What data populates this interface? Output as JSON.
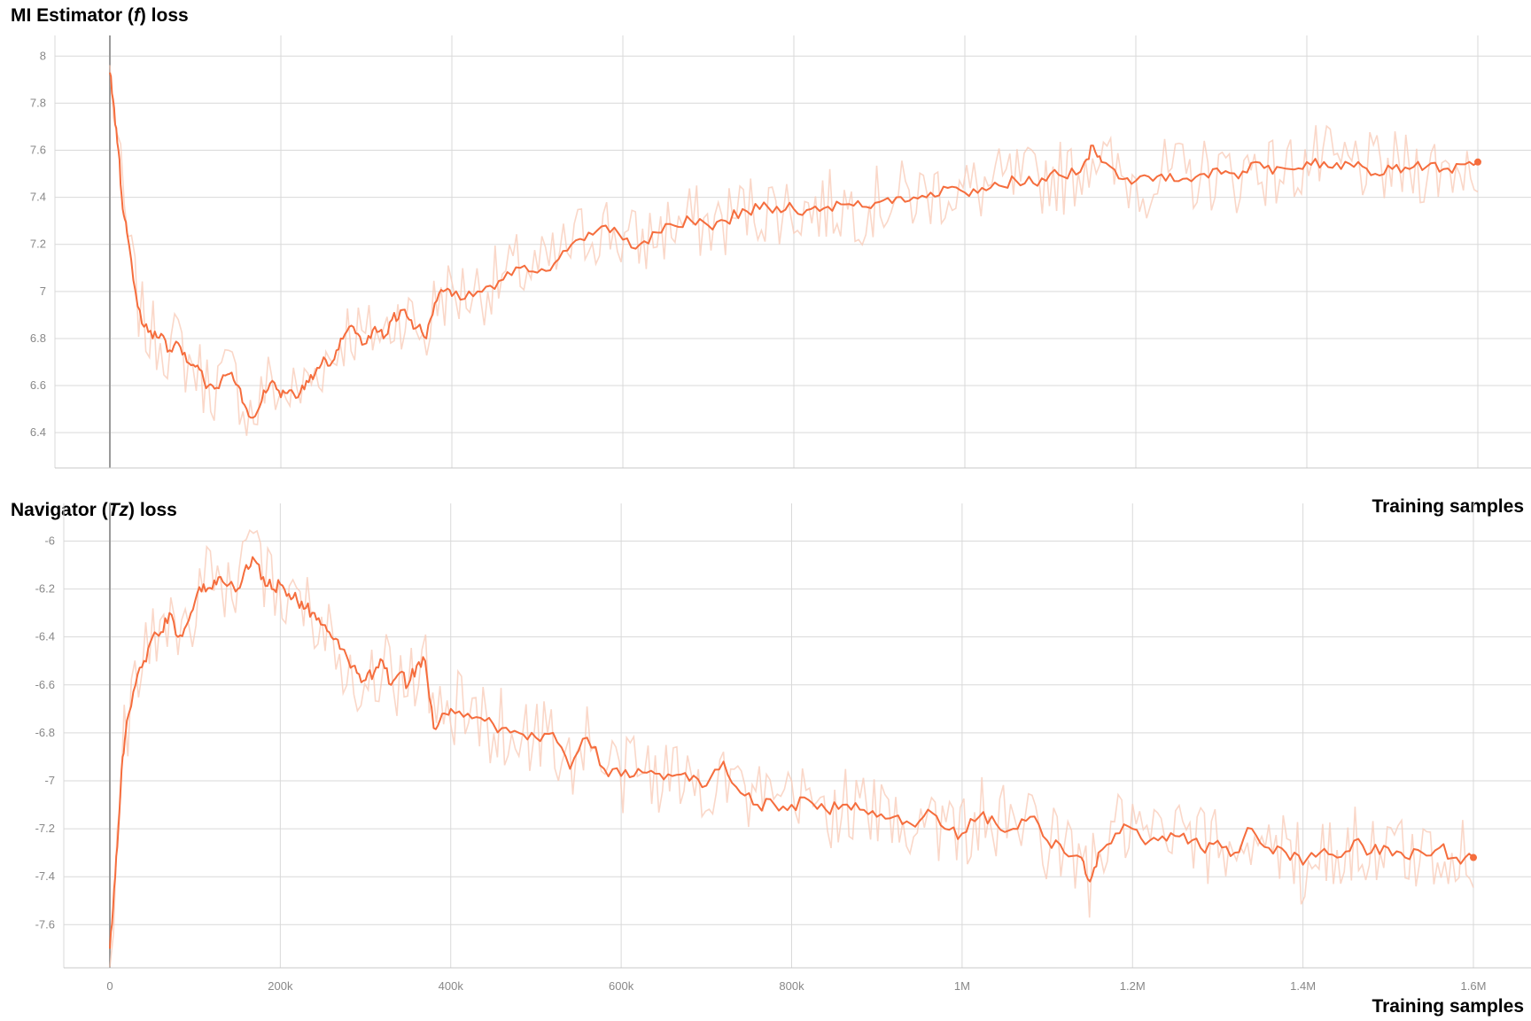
{
  "colors": {
    "line": "#f56d3d",
    "raw": "#f8c9b6",
    "grid": "#d9d9d9",
    "axis": "#888888"
  },
  "chart_data": [
    {
      "type": "line",
      "title_prefix": "MI Estimator (",
      "title_symbol": "f",
      "title_suffix": ") loss",
      "xlabel": "Training samples",
      "ylabel": "",
      "xlim": [
        0,
        1600000
      ],
      "ylim": [
        6.25,
        8.05
      ],
      "xticks": [
        0,
        200000,
        400000,
        600000,
        800000,
        1000000,
        1200000,
        1400000,
        1600000
      ],
      "xtick_labels": [
        "0",
        "200k",
        "400k",
        "600k",
        "800k",
        "1M",
        "1.2M",
        "1.4M",
        "1.6M"
      ],
      "yticks": [
        6.4,
        6.6,
        6.8,
        7.0,
        7.2,
        7.4,
        7.6,
        7.8,
        8.0
      ],
      "ytick_labels": [
        "6.4",
        "6.6",
        "6.8",
        "7",
        "7.2",
        "7.4",
        "7.6",
        "7.8",
        "8"
      ],
      "grid": true,
      "series": [
        {
          "x": [
            0,
            5000,
            10000,
            15000,
            20000,
            30000,
            40000,
            50000,
            60000,
            70000,
            80000,
            90000,
            100000,
            110000,
            120000,
            130000,
            140000,
            150000,
            160000,
            170000,
            180000,
            190000,
            200000,
            210000,
            220000,
            230000,
            240000,
            250000,
            260000,
            270000,
            280000,
            290000,
            300000,
            310000,
            320000,
            330000,
            340000,
            350000,
            360000,
            370000,
            380000,
            390000,
            400000,
            420000,
            440000,
            460000,
            480000,
            500000,
            520000,
            540000,
            560000,
            580000,
            600000,
            620000,
            640000,
            660000,
            680000,
            700000,
            720000,
            740000,
            760000,
            780000,
            800000,
            820000,
            840000,
            860000,
            880000,
            900000,
            920000,
            940000,
            960000,
            980000,
            1000000,
            1020000,
            1040000,
            1060000,
            1080000,
            1100000,
            1120000,
            1140000,
            1150000,
            1160000,
            1180000,
            1200000,
            1220000,
            1240000,
            1260000,
            1280000,
            1300000,
            1320000,
            1340000,
            1360000,
            1380000,
            1400000,
            1420000,
            1440000,
            1460000,
            1480000,
            1500000,
            1520000,
            1540000,
            1560000,
            1580000,
            1600000
          ],
          "y": [
            7.93,
            7.78,
            7.6,
            7.35,
            7.25,
            7.0,
            6.85,
            6.8,
            6.82,
            6.75,
            6.78,
            6.7,
            6.68,
            6.62,
            6.6,
            6.62,
            6.65,
            6.6,
            6.5,
            6.47,
            6.58,
            6.62,
            6.55,
            6.58,
            6.55,
            6.62,
            6.65,
            6.72,
            6.7,
            6.8,
            6.85,
            6.82,
            6.78,
            6.85,
            6.8,
            6.88,
            6.92,
            6.88,
            6.85,
            6.8,
            6.95,
            7.0,
            6.98,
            7.0,
            7.02,
            7.05,
            7.1,
            7.08,
            7.12,
            7.2,
            7.25,
            7.28,
            7.22,
            7.2,
            7.25,
            7.28,
            7.3,
            7.28,
            7.3,
            7.35,
            7.35,
            7.36,
            7.35,
            7.35,
            7.36,
            7.37,
            7.36,
            7.38,
            7.4,
            7.4,
            7.42,
            7.44,
            7.42,
            7.44,
            7.45,
            7.47,
            7.46,
            7.5,
            7.48,
            7.55,
            7.62,
            7.55,
            7.48,
            7.47,
            7.47,
            7.5,
            7.48,
            7.5,
            7.5,
            7.48,
            7.55,
            7.5,
            7.52,
            7.55,
            7.55,
            7.52,
            7.55,
            7.5,
            7.52,
            7.52,
            7.53,
            7.52,
            7.54,
            7.55
          ]
        }
      ]
    },
    {
      "type": "line",
      "title_prefix": "Navigator (",
      "title_symbol": "Tz",
      "title_suffix": ") loss",
      "xlabel": "Training samples",
      "ylabel": "",
      "xlim": [
        0,
        1600000
      ],
      "ylim": [
        -7.78,
        -5.88
      ],
      "xticks": [
        0,
        200000,
        400000,
        600000,
        800000,
        1000000,
        1200000,
        1400000,
        1600000
      ],
      "xtick_labels": [
        "0",
        "200k",
        "400k",
        "600k",
        "800k",
        "1M",
        "1.2M",
        "1.4M",
        "1.6M"
      ],
      "yticks": [
        -7.6,
        -7.4,
        -7.2,
        -7.0,
        -6.8,
        -6.6,
        -6.4,
        -6.2,
        -6.0
      ],
      "ytick_labels": [
        "-7.6",
        "-7.4",
        "-7.2",
        "-7",
        "-6.8",
        "-6.6",
        "-6.4",
        "-6.2",
        "-6"
      ],
      "grid": true,
      "series": [
        {
          "x": [
            0,
            5000,
            10000,
            15000,
            20000,
            30000,
            40000,
            50000,
            60000,
            70000,
            80000,
            90000,
            100000,
            110000,
            120000,
            130000,
            140000,
            150000,
            160000,
            170000,
            180000,
            190000,
            200000,
            210000,
            220000,
            230000,
            240000,
            250000,
            260000,
            270000,
            280000,
            290000,
            300000,
            310000,
            320000,
            330000,
            340000,
            350000,
            360000,
            370000,
            380000,
            390000,
            400000,
            420000,
            440000,
            460000,
            480000,
            500000,
            520000,
            540000,
            560000,
            580000,
            600000,
            620000,
            640000,
            660000,
            680000,
            700000,
            720000,
            740000,
            760000,
            780000,
            800000,
            820000,
            840000,
            860000,
            880000,
            900000,
            920000,
            940000,
            960000,
            980000,
            1000000,
            1020000,
            1040000,
            1060000,
            1080000,
            1100000,
            1120000,
            1140000,
            1150000,
            1160000,
            1180000,
            1200000,
            1220000,
            1240000,
            1260000,
            1280000,
            1300000,
            1320000,
            1340000,
            1360000,
            1380000,
            1400000,
            1420000,
            1440000,
            1460000,
            1480000,
            1500000,
            1520000,
            1540000,
            1560000,
            1580000,
            1600000
          ],
          "y": [
            -7.7,
            -7.45,
            -7.2,
            -6.9,
            -6.75,
            -6.6,
            -6.5,
            -6.4,
            -6.38,
            -6.3,
            -6.4,
            -6.35,
            -6.25,
            -6.18,
            -6.2,
            -6.15,
            -6.18,
            -6.2,
            -6.1,
            -6.08,
            -6.15,
            -6.2,
            -6.18,
            -6.22,
            -6.25,
            -6.28,
            -6.3,
            -6.35,
            -6.4,
            -6.45,
            -6.5,
            -6.55,
            -6.58,
            -6.55,
            -6.5,
            -6.6,
            -6.55,
            -6.6,
            -6.52,
            -6.5,
            -6.78,
            -6.72,
            -6.7,
            -6.72,
            -6.75,
            -6.78,
            -6.8,
            -6.82,
            -6.8,
            -6.95,
            -6.82,
            -6.95,
            -6.98,
            -6.95,
            -6.97,
            -6.98,
            -7.0,
            -7.02,
            -6.92,
            -7.05,
            -7.1,
            -7.1,
            -7.1,
            -7.08,
            -7.12,
            -7.1,
            -7.12,
            -7.15,
            -7.15,
            -7.18,
            -7.12,
            -7.2,
            -7.22,
            -7.15,
            -7.18,
            -7.2,
            -7.15,
            -7.25,
            -7.3,
            -7.32,
            -7.42,
            -7.3,
            -7.22,
            -7.2,
            -7.25,
            -7.25,
            -7.22,
            -7.28,
            -7.25,
            -7.3,
            -7.2,
            -7.28,
            -7.3,
            -7.35,
            -7.3,
            -7.32,
            -7.25,
            -7.3,
            -7.28,
            -7.32,
            -7.3,
            -7.28,
            -7.32,
            -7.32
          ]
        }
      ]
    }
  ]
}
